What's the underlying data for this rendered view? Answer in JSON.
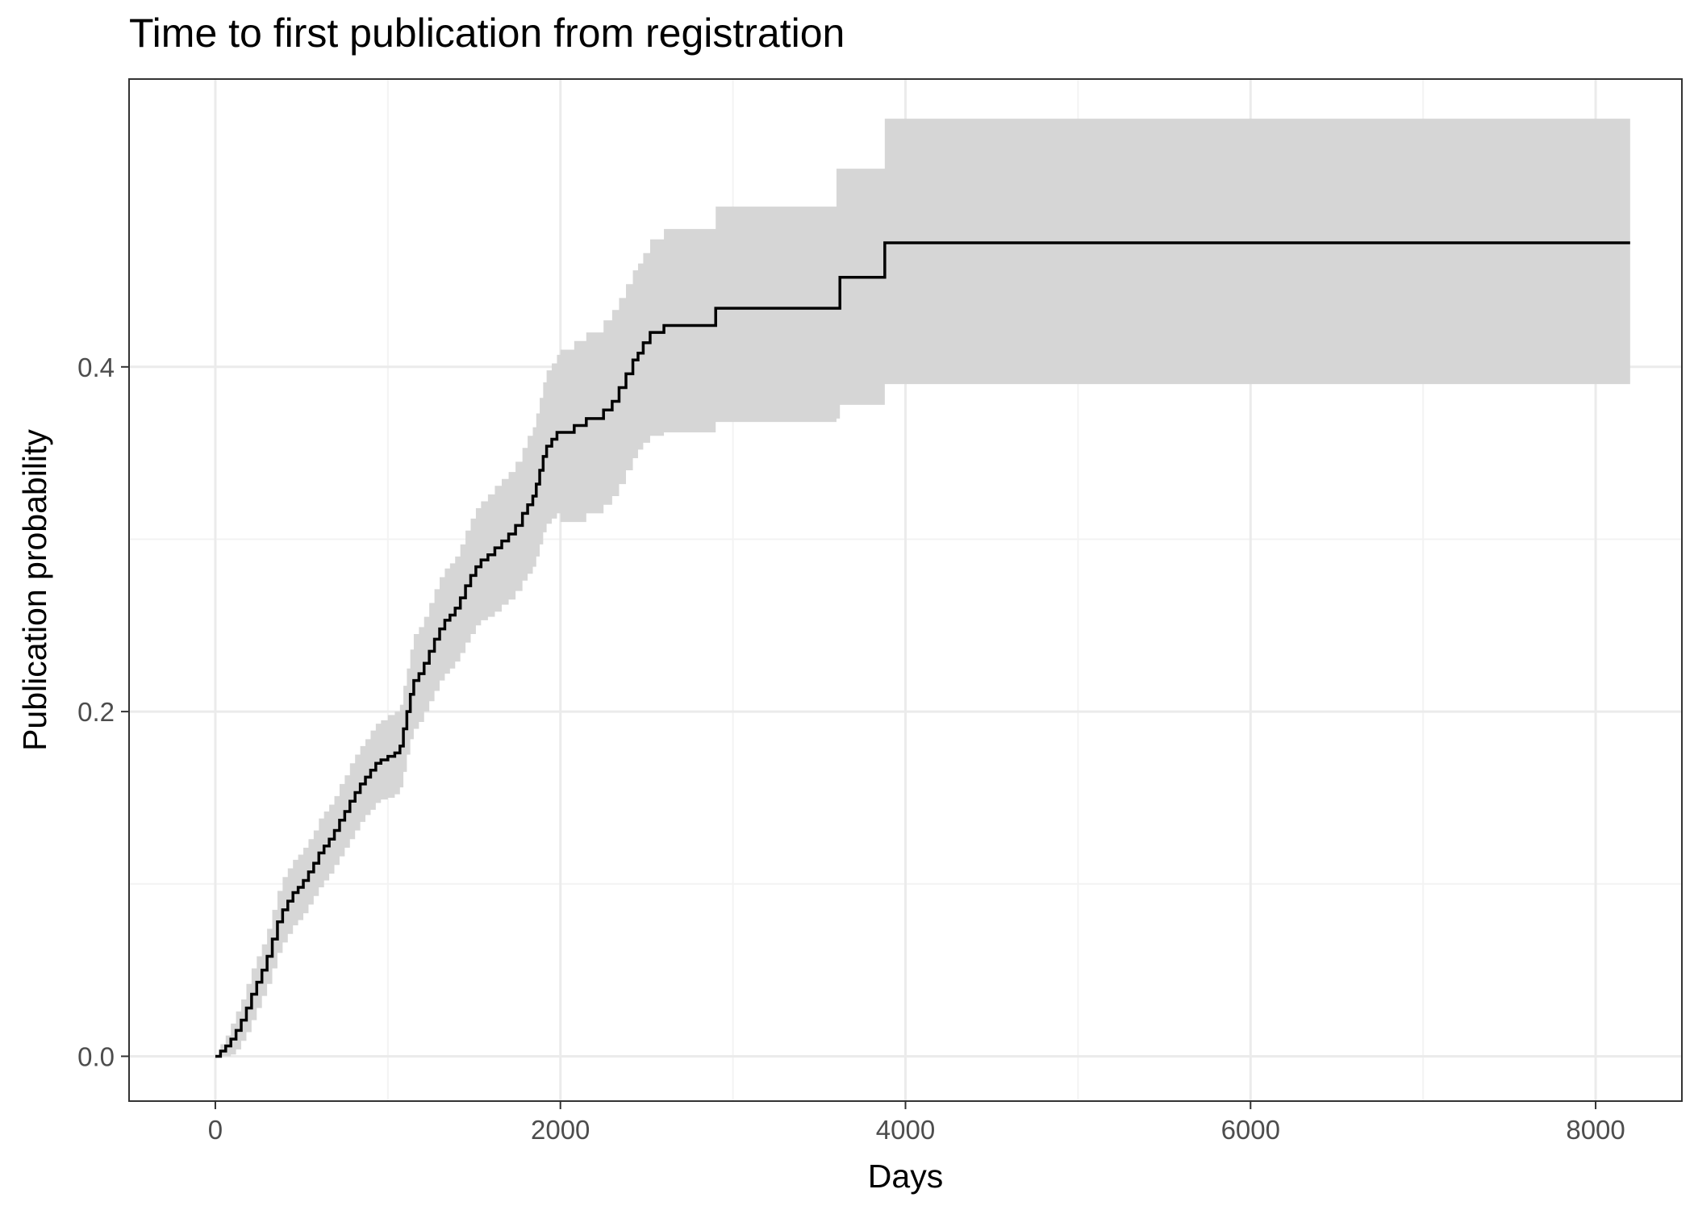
{
  "chart_data": {
    "type": "line",
    "title": "Time to first publication from registration",
    "xlabel": "Days",
    "ylabel": "Publication probability",
    "xlim": [
      -500,
      8500
    ],
    "ylim": [
      -0.026,
      0.567
    ],
    "x_ticks": [
      0,
      2000,
      4000,
      6000,
      8000
    ],
    "x_tick_labels": [
      "0",
      "2000",
      "4000",
      "6000",
      "8000"
    ],
    "y_ticks": [
      0.0,
      0.2,
      0.4
    ],
    "y_tick_labels": [
      "0.0",
      "0.2",
      "0.4"
    ],
    "grid": true,
    "legend": "none",
    "colors": {
      "line": "#000000",
      "ribbon": "#d6d6d6",
      "grid_major": "#ebebeb",
      "grid_minor": "#f3f3f3",
      "panel_border": "#333333"
    },
    "series": [
      {
        "step": true,
        "x": [
          0,
          30,
          60,
          90,
          120,
          150,
          180,
          210,
          240,
          270,
          300,
          330,
          360,
          390,
          420,
          450,
          480,
          510,
          540,
          570,
          600,
          630,
          660,
          690,
          720,
          750,
          780,
          810,
          840,
          870,
          900,
          930,
          960,
          1000,
          1040,
          1070,
          1090,
          1110,
          1130,
          1150,
          1180,
          1210,
          1240,
          1270,
          1300,
          1330,
          1360,
          1390,
          1420,
          1450,
          1480,
          1510,
          1540,
          1580,
          1620,
          1660,
          1700,
          1740,
          1780,
          1810,
          1840,
          1860,
          1880,
          1900,
          1920,
          1950,
          1980,
          2000,
          2080,
          2150,
          2250,
          2300,
          2340,
          2380,
          2420,
          2450,
          2480,
          2520,
          2600,
          2800,
          2900,
          3200,
          3600,
          3620,
          3880,
          5000,
          8200
        ],
        "y": [
          0.0,
          0.003,
          0.006,
          0.01,
          0.015,
          0.021,
          0.028,
          0.036,
          0.043,
          0.05,
          0.058,
          0.068,
          0.078,
          0.085,
          0.09,
          0.095,
          0.098,
          0.102,
          0.107,
          0.112,
          0.118,
          0.122,
          0.126,
          0.131,
          0.137,
          0.142,
          0.148,
          0.153,
          0.158,
          0.162,
          0.166,
          0.17,
          0.172,
          0.174,
          0.176,
          0.18,
          0.19,
          0.2,
          0.21,
          0.218,
          0.222,
          0.228,
          0.235,
          0.242,
          0.248,
          0.253,
          0.256,
          0.26,
          0.266,
          0.273,
          0.279,
          0.284,
          0.288,
          0.291,
          0.295,
          0.299,
          0.303,
          0.308,
          0.315,
          0.32,
          0.325,
          0.332,
          0.34,
          0.348,
          0.354,
          0.358,
          0.362,
          0.362,
          0.366,
          0.37,
          0.375,
          0.38,
          0.388,
          0.396,
          0.404,
          0.408,
          0.414,
          0.42,
          0.424,
          0.424,
          0.434,
          0.434,
          0.434,
          0.452,
          0.472,
          0.472,
          0.472
        ],
        "lower": [
          0.0,
          0.0,
          0.0,
          0.001,
          0.004,
          0.009,
          0.014,
          0.021,
          0.028,
          0.035,
          0.042,
          0.051,
          0.06,
          0.066,
          0.071,
          0.076,
          0.079,
          0.083,
          0.088,
          0.093,
          0.098,
          0.102,
          0.106,
          0.111,
          0.116,
          0.121,
          0.126,
          0.131,
          0.136,
          0.14,
          0.143,
          0.147,
          0.149,
          0.15,
          0.152,
          0.156,
          0.165,
          0.175,
          0.184,
          0.19,
          0.194,
          0.2,
          0.206,
          0.212,
          0.218,
          0.222,
          0.225,
          0.229,
          0.234,
          0.24,
          0.245,
          0.25,
          0.253,
          0.255,
          0.258,
          0.262,
          0.265,
          0.27,
          0.276,
          0.28,
          0.284,
          0.29,
          0.297,
          0.304,
          0.309,
          0.312,
          0.315,
          0.31,
          0.31,
          0.315,
          0.32,
          0.325,
          0.332,
          0.34,
          0.347,
          0.352,
          0.356,
          0.36,
          0.362,
          0.362,
          0.368,
          0.368,
          0.37,
          0.378,
          0.39,
          0.39,
          0.39
        ],
        "upper": [
          0.0,
          0.007,
          0.012,
          0.019,
          0.026,
          0.033,
          0.042,
          0.051,
          0.058,
          0.065,
          0.074,
          0.085,
          0.096,
          0.104,
          0.109,
          0.114,
          0.117,
          0.121,
          0.126,
          0.131,
          0.138,
          0.142,
          0.146,
          0.151,
          0.158,
          0.163,
          0.17,
          0.175,
          0.18,
          0.184,
          0.189,
          0.193,
          0.195,
          0.198,
          0.2,
          0.204,
          0.215,
          0.225,
          0.236,
          0.245,
          0.249,
          0.255,
          0.263,
          0.271,
          0.278,
          0.283,
          0.286,
          0.29,
          0.297,
          0.305,
          0.312,
          0.318,
          0.322,
          0.326,
          0.331,
          0.335,
          0.339,
          0.345,
          0.353,
          0.36,
          0.365,
          0.373,
          0.382,
          0.391,
          0.398,
          0.402,
          0.407,
          0.41,
          0.415,
          0.42,
          0.427,
          0.433,
          0.44,
          0.448,
          0.456,
          0.46,
          0.466,
          0.474,
          0.48,
          0.48,
          0.493,
          0.493,
          0.515,
          0.515,
          0.544,
          0.544,
          0.544
        ]
      }
    ]
  }
}
